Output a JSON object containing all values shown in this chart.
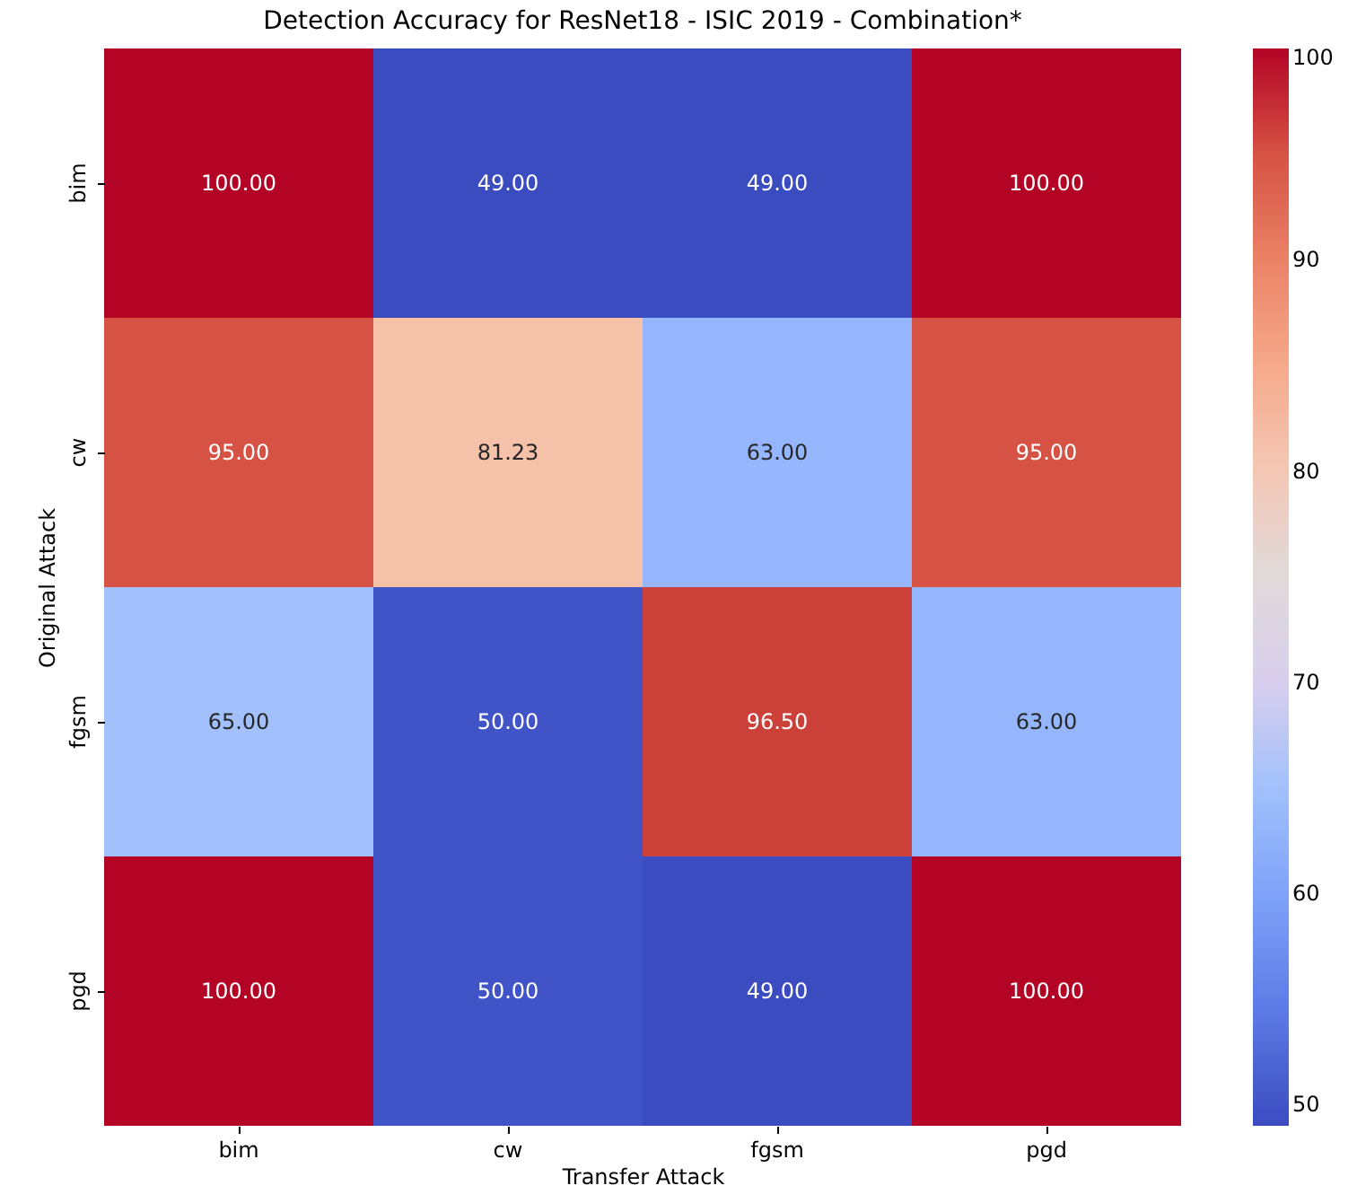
{
  "chart_data": {
    "type": "heatmap",
    "title": "Detection Accuracy for ResNet18 - ISIC 2019 - Combination*",
    "xlabel": "Transfer Attack",
    "ylabel": "Original Attack",
    "categories": [
      "bim",
      "cw",
      "fgsm",
      "pgd"
    ],
    "y_categories": [
      "bim",
      "cw",
      "fgsm",
      "pgd"
    ],
    "cells": [
      [
        100,
        49,
        49,
        100
      ],
      [
        95,
        81.23,
        63,
        95
      ],
      [
        65,
        50,
        96.5,
        63
      ],
      [
        100,
        50,
        49,
        100
      ]
    ],
    "cell_labels": [
      [
        "100.00",
        "49.00",
        "49.00",
        "100.00"
      ],
      [
        "95.00",
        "81.23",
        "63.00",
        "95.00"
      ],
      [
        "65.00",
        "50.00",
        "96.50",
        "63.00"
      ],
      [
        "100.00",
        "50.00",
        "49.00",
        "100.00"
      ]
    ],
    "clim": [
      49,
      100
    ],
    "cticks": [
      50,
      60,
      70,
      80,
      90,
      100
    ]
  }
}
